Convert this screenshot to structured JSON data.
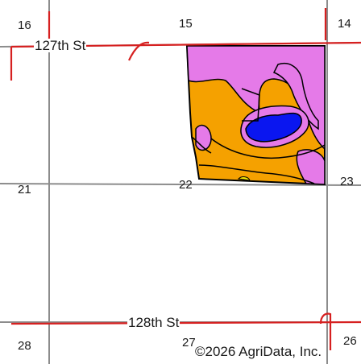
{
  "map": {
    "sections": [
      "16",
      "15",
      "14",
      "21",
      "22",
      "23",
      "28",
      "27",
      "26"
    ],
    "roads": [
      "127th St",
      "128th St"
    ],
    "copyright": "©2026 AgriData, Inc.",
    "colors": {
      "background": "#ffffff",
      "section_line": "#8c8c8c",
      "road_line": "#d62020",
      "soil_orange": "#f5a100",
      "soil_pink": "#e57ae8",
      "soil_yellow": "#f2e600",
      "water_blue": "#0a16f0",
      "boundary": "#000000"
    }
  }
}
